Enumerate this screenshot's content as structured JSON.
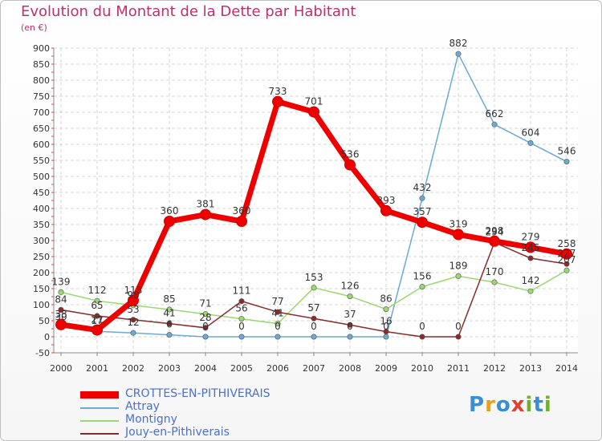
{
  "title": "Evolution du Montant de la Dette par Habitant",
  "subtitle": "(en €)",
  "logo": {
    "letters": [
      "P",
      "r",
      "o",
      "x",
      "i",
      "t",
      "i"
    ],
    "colors": [
      "#3a8fd0",
      "#e8a020",
      "#3a8fd0",
      "#e04030",
      "#70b030",
      "#3a8fd0",
      "#70b030"
    ]
  },
  "chart_data": {
    "type": "line",
    "title": "Evolution du Montant de la Dette par Habitant",
    "ylabel": "(en €)",
    "xlabel": "",
    "x": [
      "2000",
      "2001",
      "2002",
      "2003",
      "2004",
      "2005",
      "2006",
      "2007",
      "2008",
      "2009",
      "2010",
      "2011",
      "2012",
      "2013",
      "2014"
    ],
    "ylim": [
      -50,
      900
    ],
    "yticks": [
      "-50",
      "0",
      "50",
      "100",
      "150",
      "200",
      "250",
      "300",
      "350",
      "400",
      "450",
      "500",
      "550",
      "600",
      "650",
      "700",
      "750",
      "800",
      "850",
      "900"
    ],
    "grid": true,
    "legend": "bottom-left",
    "series": [
      {
        "name": "Attray",
        "color": "#6aaad4",
        "values": [
          30,
          17,
          12,
          6,
          0,
          0,
          0,
          0,
          0,
          0,
          432,
          882,
          662,
          604,
          546
        ],
        "labels": [
          "30",
          "17",
          "12",
          "6",
          "0",
          "0",
          "0",
          "0",
          "0",
          "0",
          "432",
          "882",
          "662",
          "604",
          "546"
        ]
      },
      {
        "name": "Montigny",
        "color": "#9ad870",
        "values": [
          139,
          112,
          98,
          85,
          71,
          56,
          41,
          153,
          126,
          86,
          156,
          189,
          170,
          142,
          207
        ],
        "labels": [
          "139",
          "112",
          "98",
          "85",
          "71",
          "56",
          "41",
          "153",
          "126",
          "86",
          "156",
          "189",
          "170",
          "142",
          "207"
        ]
      },
      {
        "name": "Jouy-en-Pithiverais",
        "color": "#8b2a2a",
        "values": [
          84,
          65,
          53,
          41,
          28,
          111,
          77,
          57,
          37,
          16,
          0,
          0,
          294,
          245,
          227
        ],
        "labels": [
          "84",
          "65",
          "53",
          "41",
          "28",
          "111",
          "77",
          "57",
          "37",
          "16",
          "0",
          "0",
          "294",
          "245",
          "227"
        ]
      },
      {
        "name": "CROTTES-EN-PITHIVERAIS",
        "color": "#ee0000",
        "values": [
          38,
          21,
          113,
          360,
          381,
          360,
          733,
          701,
          536,
          393,
          357,
          319,
          298,
          279,
          258
        ],
        "labels": [
          "38",
          "21",
          "113",
          "360",
          "381",
          "360",
          "733",
          "701",
          "536",
          "393",
          "357",
          "319",
          "298",
          "279",
          "258"
        ]
      }
    ]
  }
}
